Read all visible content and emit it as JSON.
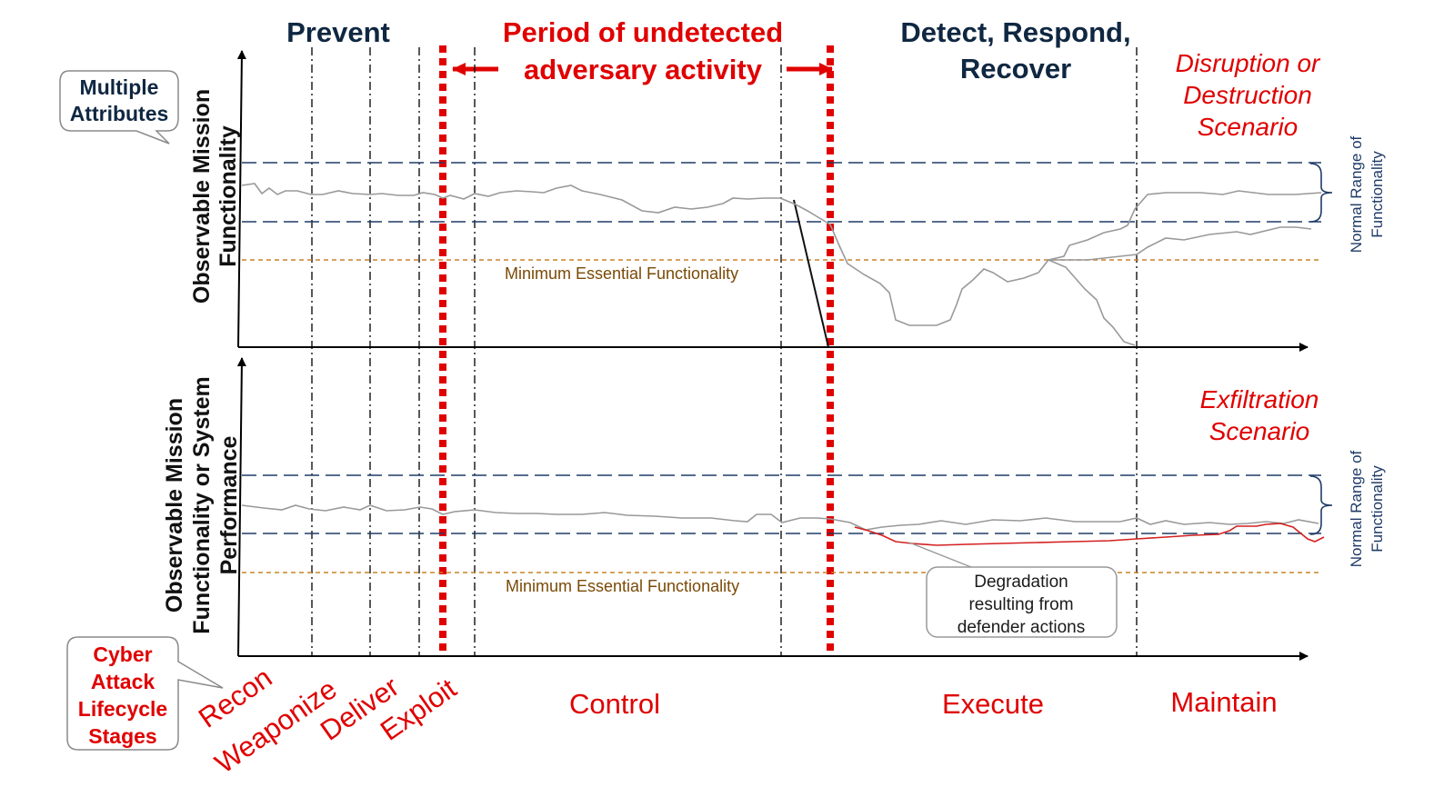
{
  "phases": {
    "prevent": "Prevent",
    "undetected_line1": "Period of undetected",
    "undetected_line2": "adversary activity",
    "detect_line1": "Detect, Respond,",
    "detect_line2": "Recover"
  },
  "callouts": {
    "multiple_attributes_line1": "Multiple",
    "multiple_attributes_line2": "Attributes",
    "lifecycle_line1": "Cyber",
    "lifecycle_line2": "Attack",
    "lifecycle_line3": "Lifecycle",
    "lifecycle_line4": "Stages"
  },
  "top_panel": {
    "scenario_line1": "Disruption or",
    "scenario_line2": "Destruction",
    "scenario_line3": "Scenario",
    "ylabel_line1": "Observable Mission",
    "ylabel_line2": "Functionality",
    "normal_range_line1": "Normal Range of",
    "normal_range_line2": "Functionality",
    "min_essential": "Minimum  Essential Functionality"
  },
  "bottom_panel": {
    "scenario_line1": "Exfiltration",
    "scenario_line2": "Scenario",
    "ylabel_line1": "Observable Mission",
    "ylabel_line2": "Functionality or System",
    "ylabel_line3": "Performance",
    "normal_range_line1": "Normal Range of",
    "normal_range_line2": "Functionality",
    "min_essential": "Minimum  Essential Functionality",
    "degradation_line1": "Degradation",
    "degradation_line2": "resulting from",
    "degradation_line3": "defender actions"
  },
  "stages": {
    "recon": "Recon",
    "weaponize": "Weaponize",
    "deliver": "Deliver",
    "exploit": "Exploit",
    "control": "Control",
    "execute": "Execute",
    "maintain": "Maintain"
  },
  "colors": {
    "navy": "#0f2741",
    "red": "#e00000",
    "dashed_range": "#1f3b66",
    "min_essential": "#c8822a",
    "trace": "#999999"
  }
}
